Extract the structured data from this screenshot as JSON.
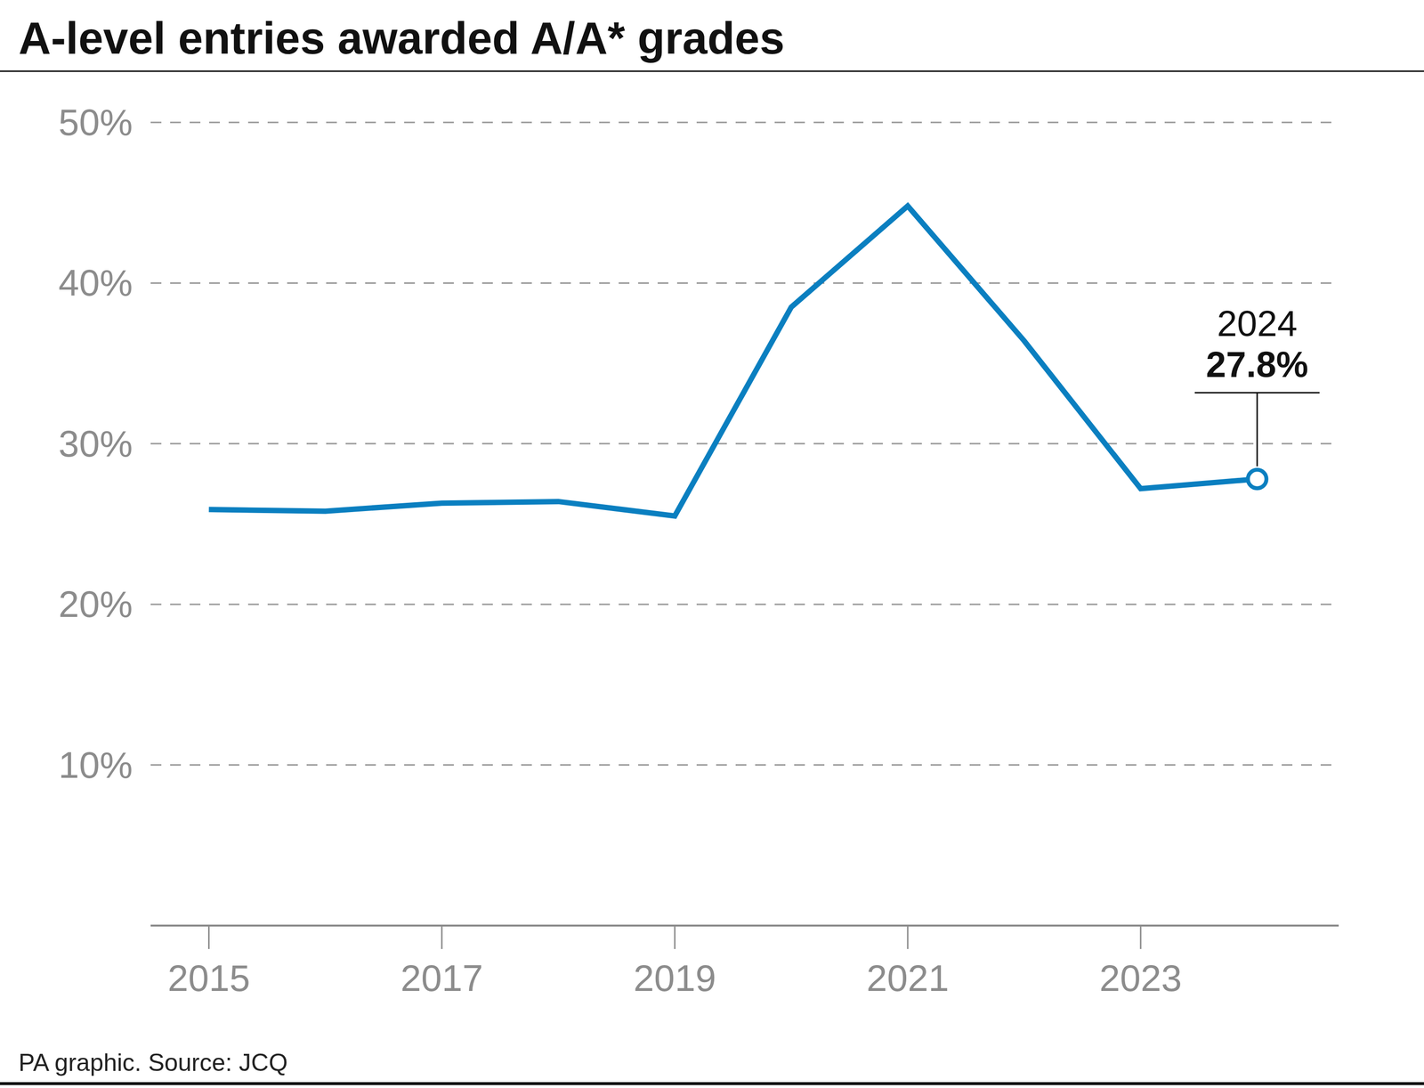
{
  "chart_data": {
    "type": "line",
    "title": "A-level entries awarded A/A* grades",
    "source": "PA graphic. Source: JCQ",
    "x": [
      2015,
      2016,
      2017,
      2018,
      2019,
      2020,
      2021,
      2022,
      2023,
      2024
    ],
    "values": [
      25.9,
      25.8,
      26.3,
      26.4,
      25.5,
      38.5,
      44.8,
      36.4,
      27.2,
      27.8
    ],
    "color": "#0a7fc0",
    "xlim": [
      2014.5,
      2024.7
    ],
    "xticks": [
      2015,
      2017,
      2019,
      2021,
      2023
    ],
    "ylim": [
      0,
      50
    ],
    "yticks": [
      {
        "value": 10,
        "label": "10%"
      },
      {
        "value": 20,
        "label": "20%"
      },
      {
        "value": 30,
        "label": "30%"
      },
      {
        "value": 40,
        "label": "40%"
      },
      {
        "value": 50,
        "label": "50%"
      }
    ],
    "grid": true,
    "annotations": [
      {
        "x": 2024,
        "y": 27.8,
        "heading": "2024",
        "text": "27.8%"
      }
    ]
  }
}
